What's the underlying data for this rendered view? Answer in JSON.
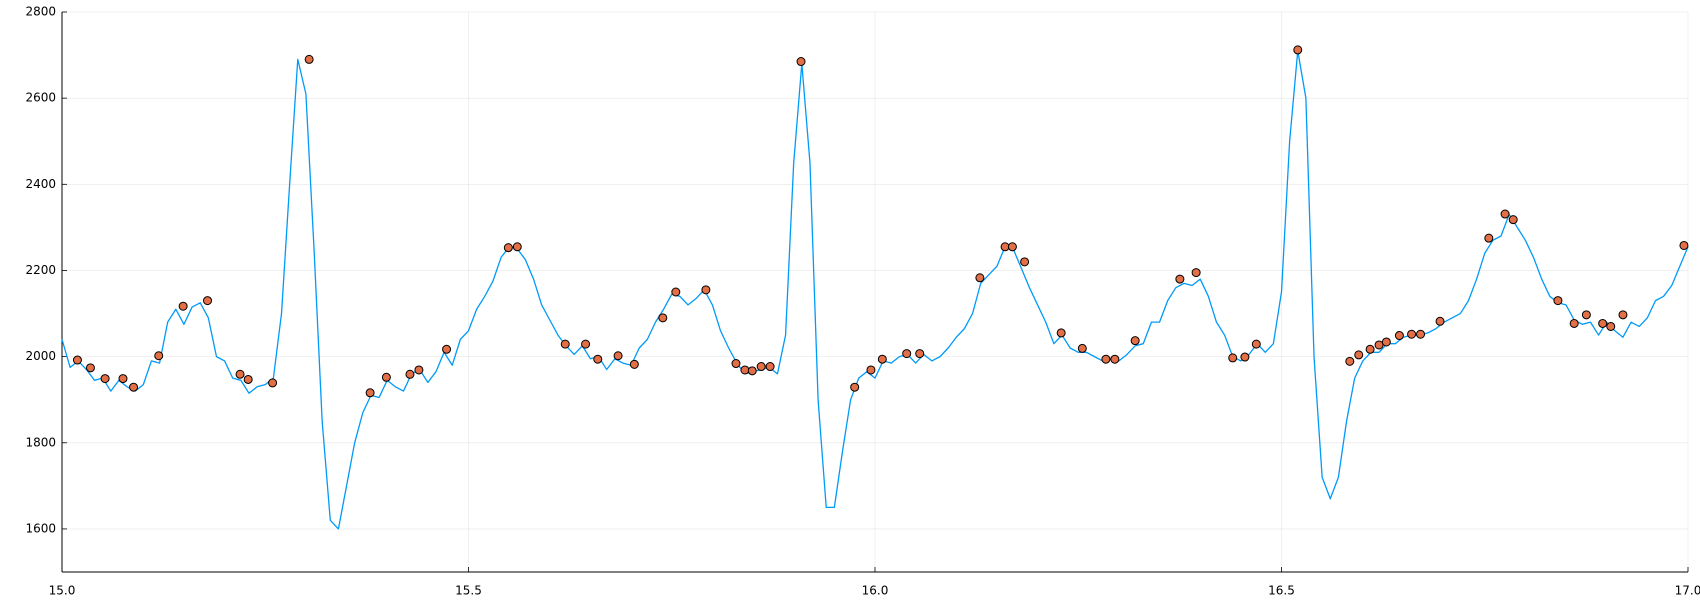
{
  "chart_data": {
    "type": "line",
    "xlim": [
      15,
      17
    ],
    "xticks": [
      {
        "value": 15,
        "label": "15.0"
      },
      {
        "value": 15.5,
        "label": "15.5"
      },
      {
        "value": 16,
        "label": "16.0"
      },
      {
        "value": 16.5,
        "label": "16.5"
      },
      {
        "value": 17,
        "label": "17.0"
      }
    ],
    "ylim": [
      1500,
      2800
    ],
    "yticks": [
      1600,
      1800,
      2000,
      2200,
      2400,
      2600,
      2800
    ],
    "grid": true,
    "series": [
      {
        "type": "line",
        "color": "#009af9",
        "x": [
          15,
          15.01,
          15.02,
          15.03,
          15.04,
          15.05,
          15.06,
          15.07,
          15.08,
          15.09,
          15.1,
          15.11,
          15.12,
          15.13,
          15.14,
          15.15,
          15.16,
          15.17,
          15.18,
          15.19,
          15.2,
          15.21,
          15.22,
          15.23,
          15.24,
          15.25,
          15.26,
          15.27,
          15.28,
          15.29,
          15.3,
          15.31,
          15.32,
          15.33,
          15.34,
          15.35,
          15.36,
          15.37,
          15.38,
          15.39,
          15.4,
          15.41,
          15.42,
          15.43,
          15.44,
          15.45,
          15.46,
          15.47,
          15.48,
          15.49,
          15.5,
          15.51,
          15.52,
          15.53,
          15.54,
          15.55,
          15.56,
          15.57,
          15.58,
          15.59,
          15.6,
          15.61,
          15.62,
          15.63,
          15.64,
          15.65,
          15.66,
          15.67,
          15.68,
          15.69,
          15.7,
          15.71,
          15.72,
          15.73,
          15.74,
          15.75,
          15.76,
          15.77,
          15.78,
          15.79,
          15.8,
          15.81,
          15.82,
          15.83,
          15.84,
          15.85,
          15.86,
          15.87,
          15.88,
          15.89,
          15.9,
          15.91,
          15.92,
          15.93,
          15.94,
          15.95,
          15.96,
          15.97,
          15.98,
          15.99,
          16,
          16.01,
          16.02,
          16.03,
          16.04,
          16.05,
          16.06,
          16.07,
          16.08,
          16.09,
          16.1,
          16.11,
          16.12,
          16.13,
          16.14,
          16.15,
          16.16,
          16.17,
          16.18,
          16.19,
          16.2,
          16.21,
          16.22,
          16.23,
          16.24,
          16.25,
          16.26,
          16.27,
          16.28,
          16.29,
          16.3,
          16.31,
          16.32,
          16.33,
          16.34,
          16.35,
          16.36,
          16.37,
          16.38,
          16.39,
          16.4,
          16.41,
          16.42,
          16.43,
          16.44,
          16.45,
          16.46,
          16.47,
          16.48,
          16.49,
          16.5,
          16.51,
          16.52,
          16.53,
          16.54,
          16.55,
          16.56,
          16.57,
          16.58,
          16.59,
          16.6,
          16.61,
          16.62,
          16.63,
          16.64,
          16.65,
          16.66,
          16.67,
          16.68,
          16.69,
          16.7,
          16.71,
          16.72,
          16.73,
          16.74,
          16.75,
          16.76,
          16.77,
          16.78,
          16.79,
          16.8,
          16.81,
          16.82,
          16.83,
          16.84,
          16.85,
          16.86,
          16.87,
          16.88,
          16.89,
          16.9,
          16.91,
          16.92,
          16.93,
          16.94,
          16.95,
          16.96,
          16.97,
          16.98,
          16.99,
          17
        ],
        "values": [
          2040,
          1975,
          1990,
          1970,
          1945,
          1950,
          1920,
          1945,
          1930,
          1920,
          1935,
          1990,
          1985,
          2080,
          2110,
          2075,
          2115,
          2125,
          2090,
          2000,
          1990,
          1950,
          1945,
          1915,
          1930,
          1935,
          1950,
          2100,
          2400,
          2690,
          2610,
          2250,
          1850,
          1620,
          1600,
          1700,
          1800,
          1870,
          1910,
          1905,
          1945,
          1930,
          1920,
          1960,
          1970,
          1940,
          1965,
          2010,
          1980,
          2040,
          2060,
          2110,
          2140,
          2175,
          2230,
          2255,
          2250,
          2225,
          2180,
          2120,
          2085,
          2050,
          2025,
          2005,
          2025,
          1995,
          2000,
          1970,
          1995,
          1985,
          1980,
          2020,
          2040,
          2080,
          2110,
          2145,
          2140,
          2120,
          2135,
          2155,
          2120,
          2060,
          2020,
          1985,
          1960,
          1965,
          1970,
          1975,
          1960,
          2050,
          2450,
          2680,
          2450,
          1900,
          1650,
          1650,
          1780,
          1900,
          1950,
          1965,
          1950,
          1990,
          1985,
          2000,
          2005,
          1985,
          2005,
          1990,
          2000,
          2020,
          2045,
          2065,
          2100,
          2170,
          2190,
          2210,
          2255,
          2250,
          2205,
          2160,
          2120,
          2080,
          2030,
          2050,
          2020,
          2010,
          2010,
          2000,
          1990,
          1995,
          1990,
          2005,
          2025,
          2030,
          2080,
          2080,
          2130,
          2160,
          2170,
          2165,
          2180,
          2140,
          2080,
          2050,
          2000,
          1990,
          2005,
          2030,
          2010,
          2030,
          2150,
          2500,
          2710,
          2600,
          2000,
          1720,
          1670,
          1720,
          1850,
          1950,
          1990,
          2010,
          2010,
          2030,
          2030,
          2045,
          2050,
          2050,
          2055,
          2065,
          2080,
          2090,
          2100,
          2130,
          2180,
          2240,
          2270,
          2280,
          2330,
          2300,
          2270,
          2230,
          2180,
          2140,
          2125,
          2120,
          2085,
          2075,
          2080,
          2050,
          2080,
          2060,
          2045,
          2080,
          2070,
          2090,
          2130,
          2140,
          2165,
          2210,
          2255
        ]
      },
      {
        "type": "scatter",
        "color": "#e26f46",
        "x": [
          15.019,
          15.035,
          15.053,
          15.075,
          15.088,
          15.119,
          15.149,
          15.179,
          15.219,
          15.229,
          15.259,
          15.304,
          15.379,
          15.399,
          15.428,
          15.439,
          15.473,
          15.549,
          15.56,
          15.619,
          15.644,
          15.659,
          15.684,
          15.704,
          15.739,
          15.755,
          15.792,
          15.829,
          15.84,
          15.849,
          15.86,
          15.871,
          15.909,
          15.975,
          15.995,
          16.009,
          16.039,
          16.055,
          16.129,
          16.16,
          16.169,
          16.184,
          16.229,
          16.255,
          16.284,
          16.295,
          16.32,
          16.375,
          16.395,
          16.44,
          16.455,
          16.469,
          16.52,
          16.584,
          16.595,
          16.609,
          16.62,
          16.629,
          16.645,
          16.66,
          16.671,
          16.695,
          16.755,
          16.775,
          16.785,
          16.84,
          16.86,
          16.875,
          16.895,
          16.905,
          16.92,
          16.995
        ],
        "values": [
          1992,
          1974,
          1949,
          1949,
          1929,
          2002,
          2117,
          2130,
          1959,
          1947,
          1939,
          2690,
          1916,
          1952,
          1959,
          1969,
          2017,
          2253,
          2255,
          2029,
          2029,
          1994,
          2002,
          1982,
          2090,
          2150,
          2155,
          1984,
          1969,
          1967,
          1977,
          1977,
          2685,
          1929,
          1969,
          1994,
          2007,
          2007,
          2183,
          2255,
          2255,
          2220,
          2055,
          2019,
          1994,
          1994,
          2037,
          2180,
          2195,
          1997,
          1999,
          2029,
          2712,
          1989,
          2004,
          2017,
          2027,
          2034,
          2049,
          2052,
          2052,
          2082,
          2275,
          2331,
          2318,
          2130,
          2077,
          2097,
          2077,
          2070,
          2097,
          2258
        ]
      }
    ]
  }
}
